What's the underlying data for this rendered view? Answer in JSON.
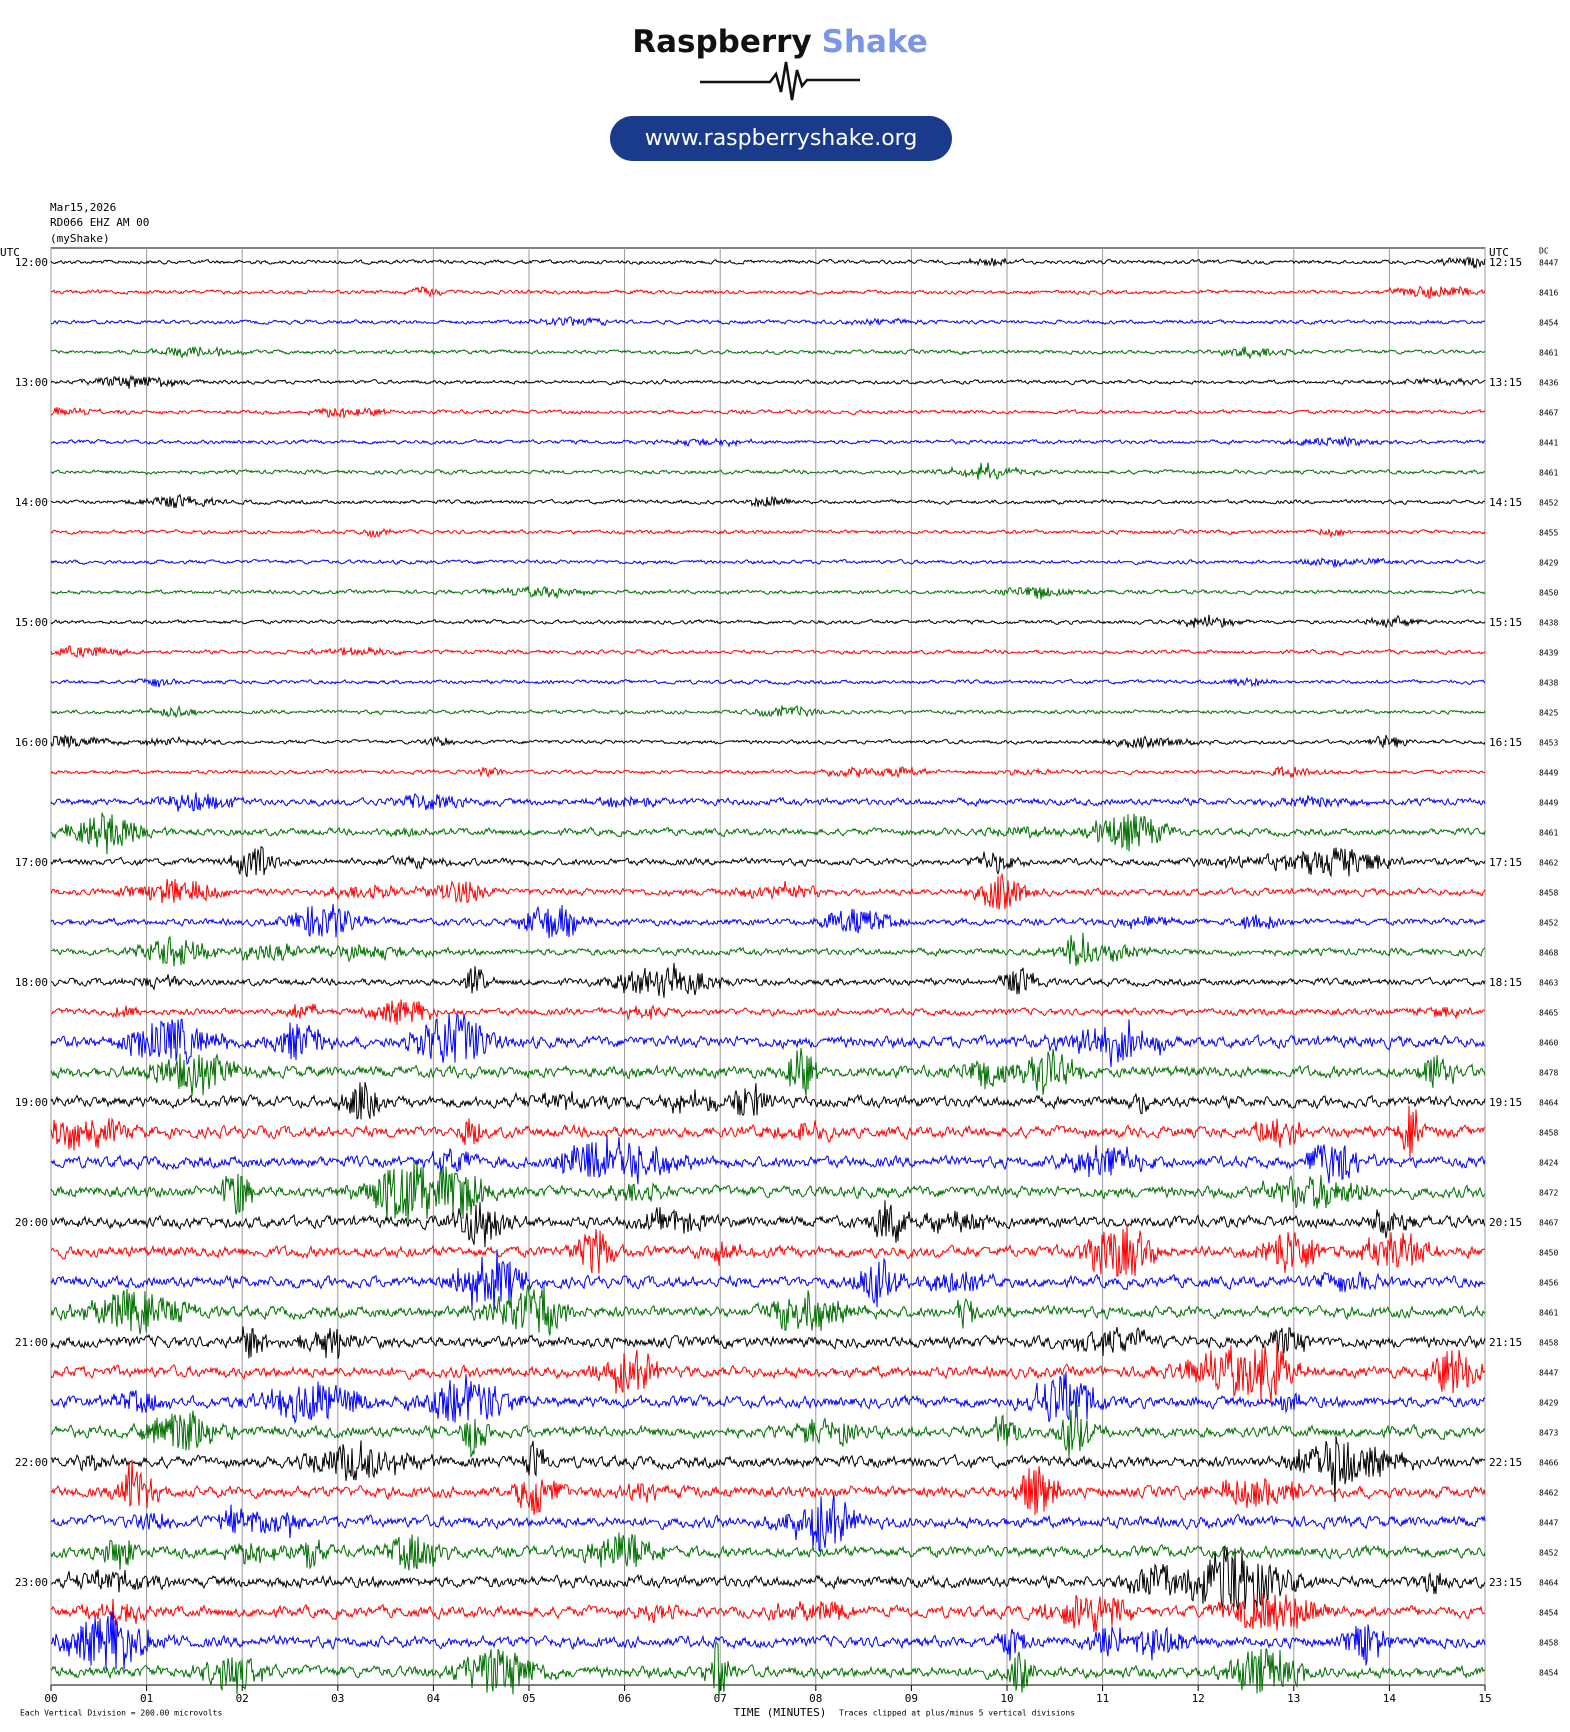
{
  "header": {
    "brand_first": "Raspberry",
    "brand_second": "Shake",
    "url": "www.raspberryshake.org"
  },
  "info": [
    "Mar15,2026",
    "RD066 EHZ AM 00",
    "(myShake)"
  ],
  "utc_left": "UTC",
  "utc_right": "UTC",
  "dc_heading": "DC",
  "left_labels": [
    "12:00",
    "13:00",
    "14:00",
    "15:00",
    "16:00",
    "17:00",
    "18:00",
    "19:00",
    "20:00",
    "21:00",
    "22:00",
    "23:00"
  ],
  "right_labels": [
    "12:15",
    "13:15",
    "14:15",
    "15:15",
    "16:15",
    "17:15",
    "18:15",
    "19:15",
    "20:15",
    "21:15",
    "22:15",
    "23:15"
  ],
  "dc_values": [
    8447,
    8416,
    8454,
    8461,
    8436,
    8467,
    8441,
    8461,
    8452,
    8455,
    8429,
    8450,
    8438,
    8439,
    8438,
    8425,
    8453,
    8449,
    8449,
    8461,
    8462,
    8458,
    8452,
    8468,
    8463,
    8465,
    8460,
    8478,
    8464,
    8458,
    8424,
    8472,
    8467,
    8450,
    8456,
    8461,
    8458,
    8447,
    8429,
    8473,
    8466,
    8462,
    8447,
    8452,
    8464,
    8454,
    8458,
    8454
  ],
  "trace_colors": [
    "#000000",
    "#ff0000",
    "#0000ff",
    "#007000"
  ],
  "x_ticks": [
    "00",
    "01",
    "02",
    "03",
    "04",
    "05",
    "06",
    "07",
    "08",
    "09",
    "10",
    "11",
    "12",
    "13",
    "14",
    "15"
  ],
  "x_axis_title": "TIME (MINUTES)",
  "footer": {
    "scale_note": "Each Vertical Division =  200.00 microvolts",
    "clip_note": "Traces clipped at plus/minus 5 vertical divisions"
  }
}
